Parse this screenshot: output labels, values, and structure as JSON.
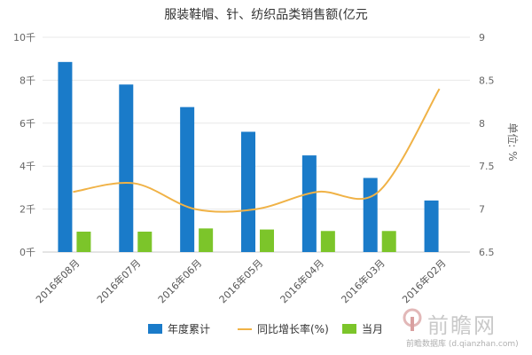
{
  "chart_data": {
    "type": "bar",
    "title": "服装鞋帽、针、纺织品类销售额(亿元",
    "categories": [
      "2016年08月",
      "2016年07月",
      "2016年06月",
      "2016年05月",
      "2016年04月",
      "2016年03月",
      "2016年02月"
    ],
    "series": [
      {
        "name": "年度累计",
        "type": "bar",
        "axis": "left",
        "color": "#1a7bc9",
        "values": [
          8.85,
          7.8,
          6.75,
          5.6,
          4.5,
          3.45,
          2.4
        ]
      },
      {
        "name": "当月",
        "type": "bar",
        "axis": "left",
        "color": "#7cc52a",
        "values": [
          0.95,
          0.95,
          1.1,
          1.05,
          0.98,
          0.98,
          null
        ]
      },
      {
        "name": "同比增长率(%)",
        "type": "line",
        "axis": "right",
        "color": "#f0b246",
        "values": [
          7.2,
          7.3,
          7.0,
          7.0,
          7.2,
          7.2,
          8.4
        ]
      }
    ],
    "y_left": {
      "ticks": [
        "0千",
        "2千",
        "4千",
        "6千",
        "8千",
        "10千"
      ],
      "ylim": [
        0,
        10
      ]
    },
    "y_right": {
      "ticks": [
        "6.5",
        "7",
        "7.5",
        "8",
        "8.5",
        "9"
      ],
      "ylim": [
        6.5,
        9
      ],
      "label": "单位: %"
    },
    "grid": true,
    "legend_position": "bottom"
  },
  "watermark": {
    "brand": "前瞻网",
    "sub": "前瞻数据库 (d.qianzhan.com)"
  }
}
